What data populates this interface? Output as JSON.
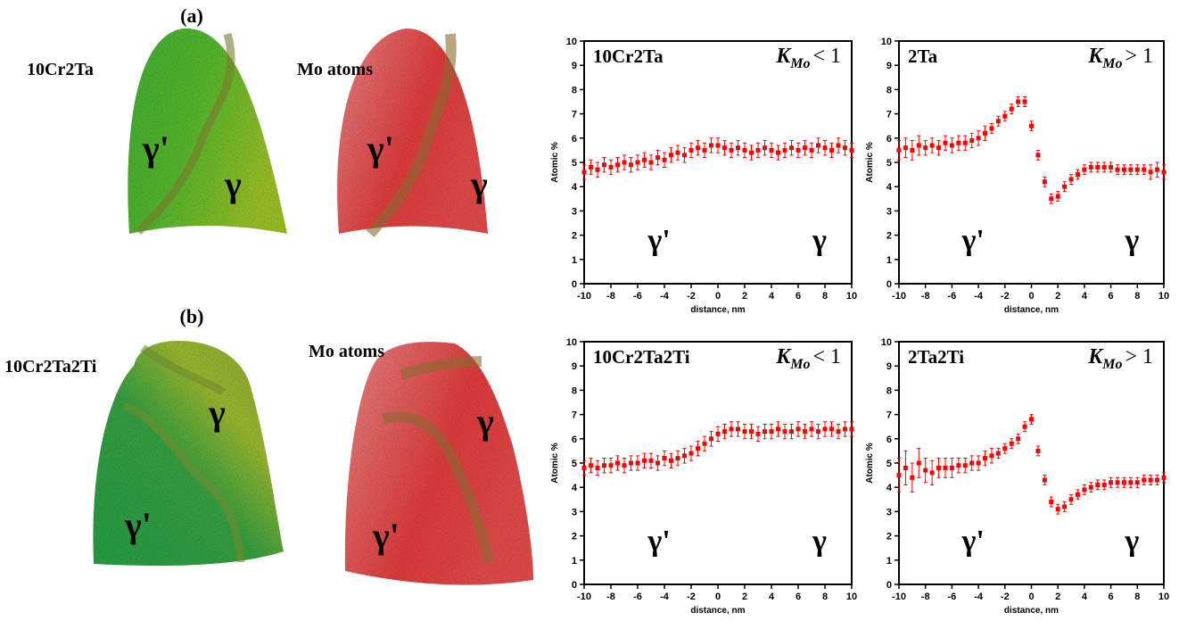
{
  "panels": [
    {
      "label": "(a)",
      "maps": [
        {
          "label": "10Cr2Ta",
          "phases": [
            "γ'",
            "γ"
          ]
        },
        {
          "label": "Mo atoms",
          "phases": [
            "γ'",
            "γ"
          ]
        }
      ]
    },
    {
      "label": "(b)",
      "maps": [
        {
          "label": "10Cr2Ta2Ti",
          "phases": [
            "γ",
            "γ'"
          ]
        },
        {
          "label": "Mo atoms",
          "phases": [
            "γ",
            "γ'"
          ]
        }
      ]
    }
  ],
  "chart_data": [
    {
      "type": "scatter",
      "label": "10Cr2Ta",
      "k_label": {
        "symbol": "K",
        "subscript": "Mo",
        "relation": "< 1"
      },
      "phase_labels": [
        "γ'",
        "γ"
      ],
      "x_label": "distance, nm",
      "y_label": "Atomic %",
      "xlim": [
        -10,
        10
      ],
      "ylim": [
        0,
        10
      ],
      "xticks": [
        -10,
        -8,
        -6,
        -4,
        -2,
        0,
        2,
        4,
        6,
        8,
        10
      ],
      "yticks": [
        0,
        1,
        2,
        3,
        4,
        5,
        6,
        7,
        8,
        9,
        10
      ],
      "x": [
        -10,
        -9.5,
        -9,
        -8.5,
        -8,
        -7.5,
        -7,
        -6.5,
        -6,
        -5.5,
        -5,
        -4.5,
        -4,
        -3.5,
        -3,
        -2.5,
        -2,
        -1.5,
        -1,
        -0.5,
        0,
        0.5,
        1,
        1.5,
        2,
        2.5,
        3,
        3.5,
        4,
        4.5,
        5,
        5.5,
        6,
        6.5,
        7,
        7.5,
        8,
        8.5,
        9,
        9.5,
        10
      ],
      "series": [
        {
          "color": "#ff0000",
          "values": [
            4.6,
            4.8,
            4.7,
            4.9,
            4.8,
            4.9,
            5.0,
            4.9,
            5.0,
            5.1,
            5.0,
            5.2,
            5.1,
            5.3,
            5.4,
            5.3,
            5.5,
            5.6,
            5.5,
            5.7,
            5.7,
            5.6,
            5.5,
            5.6,
            5.5,
            5.4,
            5.5,
            5.6,
            5.5,
            5.4,
            5.5,
            5.6,
            5.5,
            5.6,
            5.5,
            5.7,
            5.6,
            5.5,
            5.7,
            5.6,
            5.5
          ],
          "errors": [
            0.3,
            0.3,
            0.3,
            0.3,
            0.3,
            0.3,
            0.3,
            0.3,
            0.3,
            0.3,
            0.3,
            0.3,
            0.3,
            0.3,
            0.3,
            0.3,
            0.3,
            0.3,
            0.3,
            0.3,
            0.3,
            0.3,
            0.3,
            0.3,
            0.3,
            0.3,
            0.3,
            0.3,
            0.3,
            0.3,
            0.3,
            0.3,
            0.3,
            0.3,
            0.3,
            0.3,
            0.3,
            0.3,
            0.3,
            0.3,
            0.3
          ]
        }
      ]
    },
    {
      "type": "scatter",
      "label": "2Ta",
      "k_label": {
        "symbol": "K",
        "subscript": "Mo",
        "relation": "> 1"
      },
      "phase_labels": [
        "γ'",
        "γ"
      ],
      "x_label": "distance, nm",
      "y_label": "Atomic %",
      "xlim": [
        -10,
        10
      ],
      "ylim": [
        0,
        10
      ],
      "xticks": [
        -10,
        -8,
        -6,
        -4,
        -2,
        0,
        2,
        4,
        6,
        8,
        10
      ],
      "yticks": [
        0,
        1,
        2,
        3,
        4,
        5,
        6,
        7,
        8,
        9,
        10
      ],
      "x": [
        -10,
        -9.5,
        -9,
        -8.5,
        -8,
        -7.5,
        -7,
        -6.5,
        -6,
        -5.5,
        -5,
        -4.5,
        -4,
        -3.5,
        -3,
        -2.5,
        -2,
        -1.5,
        -1,
        -0.5,
        0,
        0.5,
        1,
        1.5,
        2,
        2.5,
        3,
        3.5,
        4,
        4.5,
        5,
        5.5,
        6,
        6.5,
        7,
        7.5,
        8,
        8.5,
        9,
        9.5,
        10
      ],
      "series": [
        {
          "color": "#ff0000",
          "values": [
            5.5,
            5.6,
            5.5,
            5.7,
            5.6,
            5.7,
            5.6,
            5.8,
            5.7,
            5.8,
            5.8,
            5.9,
            6.0,
            6.2,
            6.4,
            6.7,
            6.9,
            7.2,
            7.5,
            7.5,
            6.5,
            5.3,
            4.2,
            3.5,
            3.6,
            4.0,
            4.3,
            4.5,
            4.7,
            4.8,
            4.8,
            4.8,
            4.8,
            4.7,
            4.7,
            4.7,
            4.7,
            4.7,
            4.6,
            4.7,
            4.6
          ],
          "errors": [
            0.4,
            0.4,
            0.4,
            0.4,
            0.3,
            0.3,
            0.3,
            0.3,
            0.3,
            0.3,
            0.3,
            0.3,
            0.3,
            0.3,
            0.2,
            0.2,
            0.2,
            0.2,
            0.2,
            0.2,
            0.2,
            0.2,
            0.2,
            0.2,
            0.2,
            0.2,
            0.2,
            0.2,
            0.2,
            0.2,
            0.2,
            0.2,
            0.2,
            0.2,
            0.2,
            0.2,
            0.2,
            0.2,
            0.3,
            0.3,
            0.3
          ]
        }
      ]
    },
    {
      "type": "scatter",
      "label": "10Cr2Ta2Ti",
      "k_label": {
        "symbol": "K",
        "subscript": "Mo",
        "relation": "< 1"
      },
      "phase_labels": [
        "γ'",
        "γ"
      ],
      "x_label": "distance, nm",
      "y_label": "Atomic %",
      "xlim": [
        -10,
        10
      ],
      "ylim": [
        0,
        10
      ],
      "xticks": [
        -10,
        -8,
        -6,
        -4,
        -2,
        0,
        2,
        4,
        6,
        8,
        10
      ],
      "yticks": [
        0,
        1,
        2,
        3,
        4,
        5,
        6,
        7,
        8,
        9,
        10
      ],
      "x": [
        -10,
        -9.5,
        -9,
        -8.5,
        -8,
        -7.5,
        -7,
        -6.5,
        -6,
        -5.5,
        -5,
        -4.5,
        -4,
        -3.5,
        -3,
        -2.5,
        -2,
        -1.5,
        -1,
        -0.5,
        0,
        0.5,
        1,
        1.5,
        2,
        2.5,
        3,
        3.5,
        4,
        4.5,
        5,
        5.5,
        6,
        6.5,
        7,
        7.5,
        8,
        8.5,
        9,
        9.5,
        10
      ],
      "series": [
        {
          "color": "#ff0000",
          "values": [
            4.8,
            4.9,
            4.8,
            4.9,
            4.9,
            5.0,
            4.9,
            5.0,
            5.0,
            5.1,
            5.1,
            5.0,
            5.2,
            5.1,
            5.2,
            5.3,
            5.4,
            5.6,
            5.8,
            6.0,
            6.2,
            6.3,
            6.4,
            6.4,
            6.3,
            6.3,
            6.2,
            6.3,
            6.3,
            6.4,
            6.3,
            6.3,
            6.4,
            6.3,
            6.4,
            6.3,
            6.4,
            6.4,
            6.3,
            6.4,
            6.4
          ],
          "errors": [
            0.3,
            0.3,
            0.3,
            0.3,
            0.3,
            0.3,
            0.3,
            0.3,
            0.3,
            0.3,
            0.3,
            0.3,
            0.3,
            0.3,
            0.3,
            0.3,
            0.3,
            0.3,
            0.3,
            0.3,
            0.3,
            0.3,
            0.3,
            0.3,
            0.3,
            0.3,
            0.3,
            0.3,
            0.3,
            0.3,
            0.3,
            0.3,
            0.3,
            0.3,
            0.3,
            0.3,
            0.3,
            0.3,
            0.3,
            0.3,
            0.3
          ]
        }
      ]
    },
    {
      "type": "scatter",
      "label": "2Ta2Ti",
      "k_label": {
        "symbol": "K",
        "subscript": "Mo",
        "relation": "> 1"
      },
      "phase_labels": [
        "γ'",
        "γ"
      ],
      "x_label": "distance, nm",
      "y_label": "Atomic %",
      "xlim": [
        -10,
        10
      ],
      "ylim": [
        0,
        10
      ],
      "xticks": [
        -10,
        -8,
        -6,
        -4,
        -2,
        0,
        2,
        4,
        6,
        8,
        10
      ],
      "yticks": [
        0,
        1,
        2,
        3,
        4,
        5,
        6,
        7,
        8,
        9,
        10
      ],
      "x": [
        -10,
        -9.5,
        -9,
        -8.5,
        -8,
        -7.5,
        -7,
        -6.5,
        -6,
        -5.5,
        -5,
        -4.5,
        -4,
        -3.5,
        -3,
        -2.5,
        -2,
        -1.5,
        -1,
        -0.5,
        0,
        0.5,
        1,
        1.5,
        2,
        2.5,
        3,
        3.5,
        4,
        4.5,
        5,
        5.5,
        6,
        6.5,
        7,
        7.5,
        8,
        8.5,
        9,
        9.5,
        10
      ],
      "series": [
        {
          "color": "#ff0000",
          "values": [
            4.5,
            4.8,
            4.4,
            5.0,
            4.7,
            4.6,
            4.8,
            4.8,
            4.8,
            4.9,
            4.9,
            5.0,
            5.0,
            5.2,
            5.3,
            5.4,
            5.6,
            5.8,
            6.0,
            6.5,
            6.8,
            5.5,
            4.3,
            3.4,
            3.1,
            3.2,
            3.5,
            3.7,
            3.9,
            4.0,
            4.1,
            4.1,
            4.2,
            4.2,
            4.2,
            4.2,
            4.2,
            4.3,
            4.3,
            4.3,
            4.4
          ],
          "errors": [
            0.7,
            0.7,
            0.6,
            0.6,
            0.5,
            0.5,
            0.4,
            0.4,
            0.4,
            0.3,
            0.3,
            0.3,
            0.3,
            0.3,
            0.3,
            0.2,
            0.2,
            0.2,
            0.2,
            0.2,
            0.2,
            0.2,
            0.2,
            0.2,
            0.2,
            0.2,
            0.2,
            0.2,
            0.2,
            0.2,
            0.2,
            0.2,
            0.2,
            0.2,
            0.2,
            0.2,
            0.2,
            0.2,
            0.2,
            0.2,
            0.2
          ]
        }
      ]
    }
  ]
}
